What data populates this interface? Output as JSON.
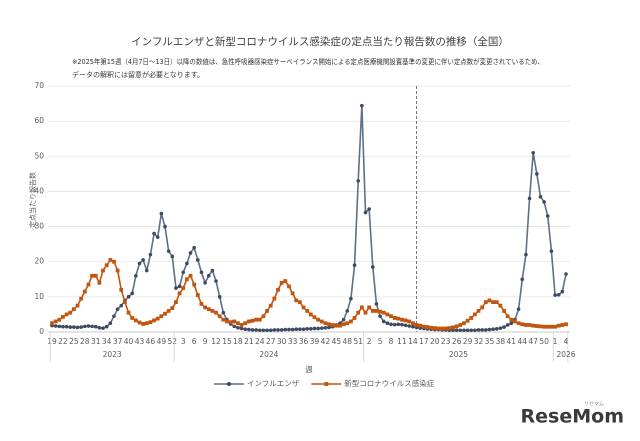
{
  "chart_data": {
    "type": "line",
    "title": "インフルエンザと新型コロナウイルス感染症の定点当たり報告数の推移（全国）",
    "note_lines": [
      "※2025年第15週（4月7日～13日）以降の数値は、急性呼吸器感染症サーベイランス開始による定点医療機関設置基準の変更に伴い定点数が変更されているため、",
      "データの解釈には留意が必要となります。"
    ],
    "y_label": "定点当たり報告数",
    "x_label": "週",
    "years": [
      "2023",
      "2024",
      "2025",
      "2026"
    ],
    "categories": [
      "19",
      null,
      null,
      "22",
      null,
      null,
      "25",
      null,
      null,
      "28",
      null,
      null,
      "31",
      null,
      null,
      "34",
      null,
      null,
      "37",
      null,
      null,
      "40",
      null,
      null,
      "43",
      null,
      null,
      "46",
      null,
      null,
      "49",
      null,
      null,
      "52",
      null,
      null,
      "3",
      null,
      null,
      "6",
      null,
      null,
      "9",
      null,
      null,
      "12",
      null,
      null,
      "15",
      null,
      null,
      "18",
      null,
      null,
      "21",
      null,
      null,
      "24",
      null,
      null,
      "27",
      null,
      null,
      "30",
      null,
      null,
      "33",
      null,
      null,
      "36",
      null,
      null,
      "39",
      null,
      null,
      "42",
      null,
      null,
      "45",
      null,
      null,
      "48",
      null,
      null,
      "51",
      null,
      null,
      "2",
      null,
      null,
      "5",
      null,
      null,
      "8",
      null,
      null,
      "11",
      null,
      null,
      "14",
      null,
      null,
      "17",
      null,
      null,
      "20",
      null,
      null,
      "23",
      null,
      null,
      "26",
      null,
      null,
      "29",
      null,
      null,
      "32",
      null,
      null,
      "35",
      null,
      null,
      "38",
      null,
      null,
      "41",
      null,
      null,
      "44",
      null,
      null,
      "47",
      null,
      null,
      "50",
      null,
      null,
      "1",
      null,
      null,
      "4"
    ],
    "series": [
      {
        "name": "インフルエンザ",
        "color": "#5f6f88",
        "marker_color": "#3d4a60",
        "marker": "circle",
        "values": [
          1.8,
          1.7,
          1.6,
          1.5,
          1.5,
          1.4,
          1.4,
          1.3,
          1.4,
          1.6,
          1.7,
          1.6,
          1.5,
          1.2,
          1.1,
          1.5,
          2.5,
          4.5,
          6.5,
          7.5,
          9,
          10,
          11,
          16,
          19.5,
          20.5,
          17.5,
          22,
          28,
          27,
          33.7,
          30,
          23,
          21.5,
          12.5,
          13,
          17,
          19.5,
          22.5,
          24,
          20.5,
          17,
          14,
          16,
          17.5,
          14.5,
          10,
          5.5,
          3.5,
          2.3,
          1.6,
          1.2,
          1.0,
          0.8,
          0.7,
          0.6,
          0.6,
          0.5,
          0.5,
          0.5,
          0.5,
          0.6,
          0.6,
          0.6,
          0.7,
          0.7,
          0.7,
          0.8,
          0.8,
          0.8,
          0.9,
          0.9,
          1.0,
          1.0,
          1.1,
          1.2,
          1.3,
          1.5,
          2.0,
          2.5,
          3.5,
          6,
          9.5,
          19,
          43,
          64.4,
          34,
          35,
          18.5,
          8,
          4.5,
          3,
          2.5,
          2.2,
          2.1,
          2.2,
          2.1,
          1.9,
          1.7,
          1.5,
          1.3,
          1.1,
          1.0,
          0.9,
          0.8,
          0.7,
          0.7,
          0.6,
          0.6,
          0.5,
          0.5,
          0.5,
          0.5,
          0.5,
          0.5,
          0.5,
          0.5,
          0.6,
          0.6,
          0.6,
          0.7,
          0.8,
          0.9,
          1.1,
          1.4,
          2.0,
          2.5,
          3.5,
          6.5,
          15,
          22,
          38,
          51,
          45,
          38.5,
          37,
          33,
          23,
          10.5,
          10.6,
          11.5,
          16.5
        ]
      },
      {
        "name": "新型コロナウイルス感染症",
        "color": "#c0560f",
        "marker_color": "#c0560f",
        "marker": "square",
        "values": [
          2.5,
          3,
          3.5,
          4.3,
          5,
          5.5,
          6.5,
          7.5,
          9.5,
          11.5,
          13.5,
          16,
          16,
          14,
          17.5,
          19,
          20.5,
          20,
          17.5,
          12,
          8.5,
          5.5,
          4,
          3.3,
          2.7,
          2.3,
          2.5,
          2.8,
          3.3,
          3.8,
          4.5,
          5.2,
          6,
          6.8,
          8.5,
          11,
          12.5,
          15,
          16,
          13.5,
          10.5,
          8,
          7,
          6.5,
          6,
          5.5,
          4.5,
          3.5,
          3,
          2.8,
          3,
          2.5,
          2,
          2.5,
          3,
          3.2,
          3.5,
          3.5,
          4.5,
          6,
          7.5,
          9.5,
          12,
          14,
          14.5,
          13,
          11,
          9,
          8.5,
          7,
          6,
          5,
          4.2,
          3.5,
          3,
          2.5,
          2.2,
          2,
          1.8,
          1.8,
          2.2,
          2.5,
          3,
          4,
          5.5,
          7,
          5.5,
          7,
          6,
          6,
          5.8,
          5.5,
          5,
          4.5,
          4,
          3.8,
          3.5,
          3.3,
          3,
          2.5,
          2,
          1.8,
          1.5,
          1.4,
          1.2,
          1.1,
          1,
          1,
          1,
          1.1,
          1.3,
          1.6,
          2,
          2.5,
          3.2,
          4,
          5,
          6,
          7,
          8.5,
          9,
          8.5,
          8.5,
          7.5,
          6,
          4.5,
          3.5,
          3,
          2.5,
          2.2,
          2,
          2,
          1.8,
          1.7,
          1.6,
          1.5,
          1.5,
          1.5,
          1.5,
          1.8,
          2,
          2.2
        ]
      }
    ],
    "ylim": [
      0,
      70
    ],
    "yticks": [
      0,
      10,
      20,
      30,
      40,
      50,
      60,
      70
    ],
    "grid": true,
    "watermark_kana": "リセマム",
    "watermark": "ReseMom"
  }
}
